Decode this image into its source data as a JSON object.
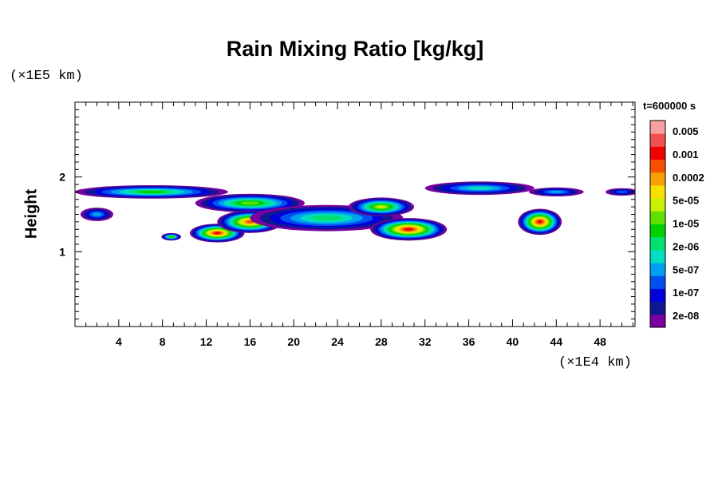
{
  "chart_data": {
    "type": "heatmap",
    "title": "Rain Mixing Ratio [kg/kg]",
    "ylabel": "Height",
    "x_unit_label": "(×1E4 km)",
    "y_unit_label": "(×1E5 km)",
    "time_label": "t=600000 s",
    "x_range": [
      0,
      51.2
    ],
    "y_range": [
      0,
      3
    ],
    "x_ticks": [
      4,
      8,
      12,
      16,
      20,
      24,
      28,
      32,
      36,
      40,
      44,
      48
    ],
    "x_tick_labels": [
      "4",
      "8",
      "12",
      "16",
      "20",
      "24",
      "28",
      "32",
      "36",
      "40",
      "44",
      "48"
    ],
    "y_ticks": [
      1,
      2
    ],
    "y_tick_labels": [
      "1",
      "2"
    ],
    "colorbar": {
      "colors": [
        "#7a00a0",
        "#101890",
        "#0000dc",
        "#0050f0",
        "#00a0f0",
        "#00e0c0",
        "#00e070",
        "#00d000",
        "#60e000",
        "#c8f000",
        "#f8e000",
        "#f8a000",
        "#f85000",
        "#f00000",
        "#f05050",
        "#f8a0a0"
      ],
      "labels": [
        "2e-08",
        "1e-07",
        "5e-07",
        "2e-06",
        "1e-05",
        "5e-05",
        "0.0002",
        "0.001",
        "0.005"
      ]
    },
    "field_features": [
      {
        "xc": 7,
        "yc": 1.8,
        "w": 14,
        "h": 0.18,
        "level": 7
      },
      {
        "xc": 16,
        "yc": 1.65,
        "w": 10,
        "h": 0.25,
        "level": 8
      },
      {
        "xc": 13,
        "yc": 1.25,
        "w": 5,
        "h": 0.25,
        "level": 13
      },
      {
        "xc": 16,
        "yc": 1.4,
        "w": 6,
        "h": 0.3,
        "level": 12
      },
      {
        "xc": 23,
        "yc": 1.45,
        "w": 14,
        "h": 0.35,
        "level": 6
      },
      {
        "xc": 30.5,
        "yc": 1.3,
        "w": 7,
        "h": 0.3,
        "level": 13
      },
      {
        "xc": 28,
        "yc": 1.6,
        "w": 6,
        "h": 0.25,
        "level": 9
      },
      {
        "xc": 37,
        "yc": 1.85,
        "w": 10,
        "h": 0.18,
        "level": 5
      },
      {
        "xc": 42.5,
        "yc": 1.4,
        "w": 4,
        "h": 0.35,
        "level": 13
      },
      {
        "xc": 44,
        "yc": 1.8,
        "w": 5,
        "h": 0.12,
        "level": 4
      },
      {
        "xc": 2,
        "yc": 1.5,
        "w": 3,
        "h": 0.18,
        "level": 4
      },
      {
        "xc": 8.8,
        "yc": 1.2,
        "w": 1.8,
        "h": 0.1,
        "level": 8
      },
      {
        "xc": 50,
        "yc": 1.8,
        "w": 3,
        "h": 0.1,
        "level": 3
      }
    ]
  }
}
